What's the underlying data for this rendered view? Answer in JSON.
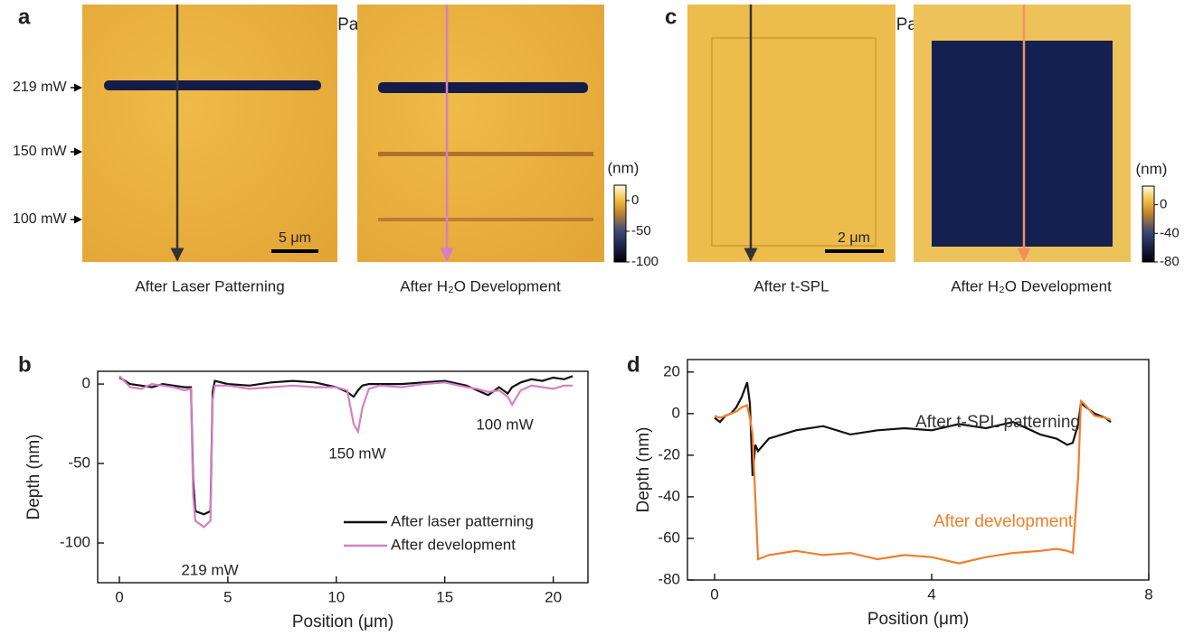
{
  "figure": {
    "panel_a": {
      "label": "a",
      "title": "Laser Patterning",
      "powers": [
        "219 mW",
        "150 mW",
        "100 mW"
      ],
      "scale_bar": "5 μm",
      "captions": [
        "After Laser Patterning",
        "After H₂O Development"
      ],
      "colorbar": {
        "title": "(nm)",
        "lim": [
          -100,
          25
        ],
        "ticks": [
          0,
          -50,
          -100
        ]
      }
    },
    "panel_c": {
      "label": "c",
      "title": "t-SPL Patterning",
      "scale_bar": "2 μm",
      "captions": [
        "After t-SPL",
        "After H₂O Development"
      ],
      "colorbar": {
        "title": "(nm)",
        "lim": [
          -80,
          26
        ],
        "ticks": [
          0,
          -40,
          -80
        ]
      }
    }
  },
  "chart_data": [
    {
      "type": "line",
      "panel_label": "b",
      "xlabel": "Position (μm)",
      "ylabel": "Depth (nm)",
      "xlim": [
        -1,
        21.6
      ],
      "ylim": [
        -125,
        8
      ],
      "xticks": [
        0,
        5,
        10,
        15,
        20
      ],
      "yticks": [
        0,
        -50,
        -100
      ],
      "legend": "lower right",
      "annotations": [
        "219 mW",
        "150 mW",
        "100 mW"
      ],
      "x": [
        0,
        0.5,
        1,
        1.5,
        2,
        2.5,
        3,
        3.3,
        3.4,
        3.5,
        3.9,
        4.2,
        4.3,
        4.4,
        5,
        6,
        7,
        8,
        9,
        10,
        10.5,
        10.8,
        11,
        11.2,
        11.5,
        12,
        13,
        14,
        15,
        16,
        16.5,
        17,
        17.5,
        17.9,
        18.1,
        18.5,
        19,
        19.5,
        20,
        20.5,
        20.9
      ],
      "series": [
        {
          "name": "After laser patterning",
          "color": "#111111",
          "values": [
            4,
            0,
            -1,
            -2,
            0,
            -1,
            -2,
            -2,
            -60,
            -80,
            -82,
            -80,
            -5,
            2,
            0,
            -1,
            1,
            2,
            1,
            -2,
            -5,
            -8,
            -4,
            -1,
            0,
            0,
            0,
            1,
            2,
            -1,
            -4,
            -7,
            -2,
            -6,
            -2,
            1,
            3,
            2,
            4,
            3,
            5
          ]
        },
        {
          "name": "After development",
          "color": "#d67fc4",
          "values": [
            5,
            -2,
            -3,
            0,
            -1,
            -2,
            -4,
            -3,
            -70,
            -86,
            -90,
            -86,
            -10,
            -1,
            -1,
            -3,
            -2,
            -1,
            -2,
            -2,
            -4,
            -25,
            -30,
            -15,
            -3,
            -1,
            -2,
            0,
            1,
            -2,
            -3,
            -5,
            -4,
            -8,
            -13,
            -4,
            -1,
            -2,
            -3,
            -1,
            -1
          ]
        }
      ]
    },
    {
      "type": "line",
      "panel_label": "d",
      "xlabel": "Position (μm)",
      "ylabel": "Depth (nm)",
      "xlim": [
        -0.5,
        8
      ],
      "ylim": [
        -80,
        26
      ],
      "xticks": [
        0,
        4,
        8
      ],
      "yticks": [
        20,
        0,
        -20,
        -40,
        -60,
        -80
      ],
      "legend": "inline",
      "x": [
        0,
        0.1,
        0.2,
        0.3,
        0.4,
        0.5,
        0.6,
        0.65,
        0.7,
        0.75,
        0.8,
        1,
        1.5,
        2,
        2.5,
        3,
        3.5,
        4,
        4.5,
        5,
        5.5,
        6,
        6.3,
        6.5,
        6.6,
        6.7,
        6.75,
        6.8,
        7,
        7.2,
        7.3
      ],
      "series": [
        {
          "name": "After t-SPL patterning",
          "color": "#111111",
          "values": [
            -2,
            -4,
            -1,
            0,
            3,
            8,
            15,
            5,
            -30,
            -15,
            -18,
            -12,
            -8,
            -6,
            -10,
            -8,
            -7,
            -8,
            -5,
            -7,
            -4,
            -10,
            -12,
            -15,
            -14,
            -5,
            5,
            4,
            0,
            -2,
            -4
          ]
        },
        {
          "name": "After development",
          "color": "#f07f2a",
          "values": [
            -1,
            -2,
            -1,
            0,
            1,
            3,
            4,
            -2,
            -10,
            -40,
            -70,
            -68,
            -66,
            -68,
            -67,
            -70,
            -68,
            -69,
            -72,
            -69,
            -67,
            -66,
            -65,
            -66,
            -67,
            -30,
            6,
            5,
            -1,
            -2,
            -3
          ]
        }
      ]
    }
  ]
}
